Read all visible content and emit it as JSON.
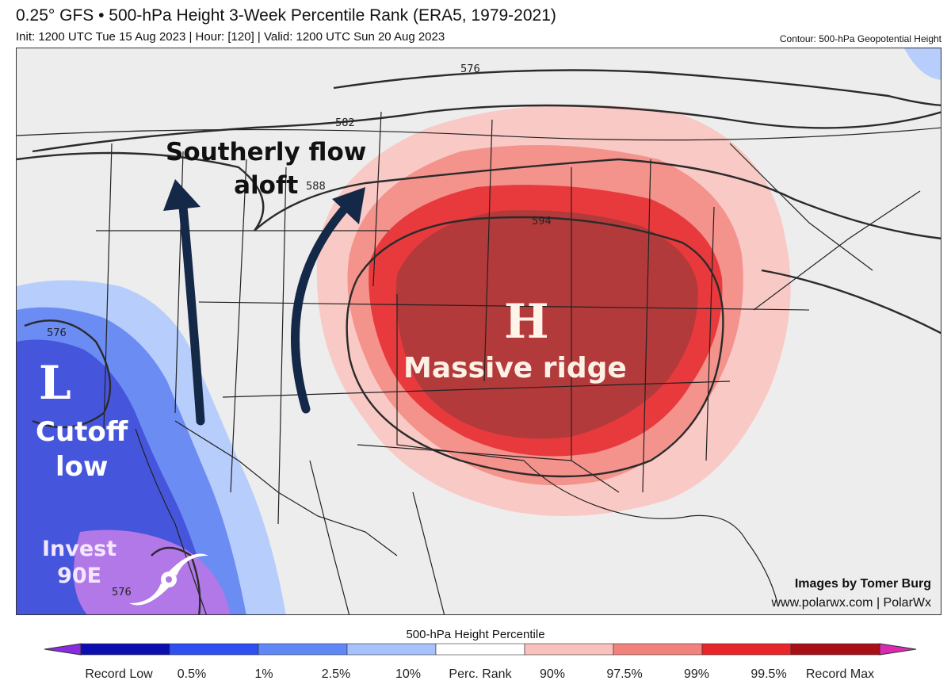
{
  "header": {
    "title": "0.25° GFS • 500-hPa Height 3-Week Percentile Rank (ERA5, 1979-2021)",
    "subtitle": "Init: 1200 UTC Tue 15 Aug 2023 | Hour: [120] | Valid: 1200 UTC Sun 20 Aug 2023",
    "contour_note": "Contour: 500-hPa Geopotential Height"
  },
  "map": {
    "contours": [
      "576",
      "582",
      "588",
      "594",
      "576",
      "576"
    ],
    "annotations": {
      "flow_line1": "Southerly flow",
      "flow_line2": "aloft",
      "ridge_symbol": "H",
      "ridge_label": "Massive ridge",
      "low_symbol": "L",
      "low_line1": "Cutoff",
      "low_line2": "low",
      "invest_line1": "Invest",
      "invest_line2": "90E"
    },
    "icons": [
      "hurricane-icon",
      "arrow-up-icon"
    ],
    "credit_line1": "Images by Tomer Burg",
    "credit_line2": "www.polarwx.com | PolarWx"
  },
  "colorbar": {
    "title": "500-hPa Height Percentile",
    "labels": [
      "Record Low",
      "0.5%",
      "1%",
      "2.5%",
      "10%",
      "Perc. Rank",
      "90%",
      "97.5%",
      "99%",
      "99.5%",
      "Record Max"
    ],
    "colors": [
      "#8a2be2",
      "#0b0fb0",
      "#2f4ff0",
      "#5f87f5",
      "#a9c1fa",
      "#ffffff",
      "#f9c1bd",
      "#f2827d",
      "#e8252a",
      "#a90f16",
      "#d92ab0"
    ]
  },
  "colors": {
    "ridge_outer": "#f9c9c5",
    "ridge_mid": "#f4928c",
    "ridge_inner": "#e83a3c",
    "ridge_core": "#b23a3a",
    "low_outer": "#b7cdfb",
    "low_mid": "#6b8cf2",
    "low_inner": "#4656dc",
    "invest": "#b278e8",
    "arrow": "#142848"
  }
}
